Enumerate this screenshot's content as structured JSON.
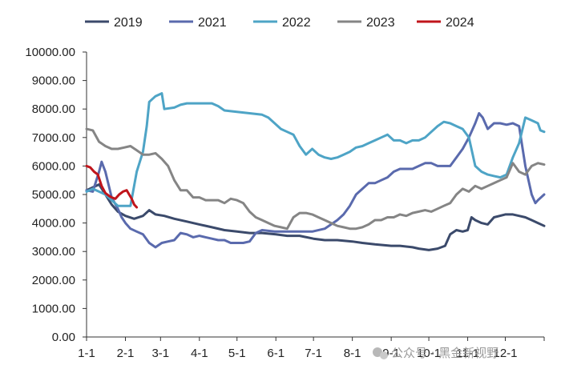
{
  "chart_data": {
    "type": "line",
    "title": "",
    "xlabel": "",
    "ylabel": "",
    "ylim": [
      0,
      10000
    ],
    "y_ticks": [
      "0.00",
      "1000.00",
      "2000.00",
      "3000.00",
      "4000.00",
      "5000.00",
      "6000.00",
      "7000.00",
      "8000.00",
      "9000.00",
      "10000.00"
    ],
    "x_ticks": [
      "1-1",
      "2-1",
      "3-1",
      "4-1",
      "5-1",
      "6-1",
      "7-1",
      "8-1",
      "9-1",
      "10-1",
      "11-1",
      "12-1"
    ],
    "x_tick_days": [
      0,
      31,
      59,
      90,
      120,
      151,
      181,
      212,
      243,
      273,
      304,
      334
    ],
    "x_range_days": [
      0,
      365
    ],
    "grid": false,
    "legend_position": "top",
    "watermark": "公众号 · 黑金新视野",
    "series": [
      {
        "name": "2019",
        "color": "#3b4a6b",
        "points": [
          [
            0,
            5150
          ],
          [
            10,
            5350
          ],
          [
            15,
            5000
          ],
          [
            20,
            4650
          ],
          [
            25,
            4400
          ],
          [
            31,
            4250
          ],
          [
            38,
            4150
          ],
          [
            45,
            4250
          ],
          [
            50,
            4450
          ],
          [
            55,
            4300
          ],
          [
            62,
            4250
          ],
          [
            70,
            4150
          ],
          [
            80,
            4050
          ],
          [
            90,
            3950
          ],
          [
            100,
            3850
          ],
          [
            110,
            3750
          ],
          [
            120,
            3700
          ],
          [
            130,
            3650
          ],
          [
            140,
            3650
          ],
          [
            151,
            3600
          ],
          [
            160,
            3550
          ],
          [
            170,
            3550
          ],
          [
            181,
            3450
          ],
          [
            190,
            3400
          ],
          [
            200,
            3400
          ],
          [
            212,
            3350
          ],
          [
            220,
            3300
          ],
          [
            230,
            3250
          ],
          [
            243,
            3200
          ],
          [
            250,
            3200
          ],
          [
            260,
            3150
          ],
          [
            265,
            3100
          ],
          [
            273,
            3050
          ],
          [
            280,
            3100
          ],
          [
            286,
            3200
          ],
          [
            290,
            3600
          ],
          [
            295,
            3750
          ],
          [
            300,
            3700
          ],
          [
            304,
            3750
          ],
          [
            307,
            4200
          ],
          [
            310,
            4100
          ],
          [
            315,
            4000
          ],
          [
            320,
            3950
          ],
          [
            325,
            4200
          ],
          [
            334,
            4300
          ],
          [
            340,
            4300
          ],
          [
            345,
            4250
          ],
          [
            350,
            4200
          ],
          [
            355,
            4100
          ],
          [
            360,
            4000
          ],
          [
            365,
            3900
          ]
        ]
      },
      {
        "name": "2021",
        "color": "#5a6aad",
        "points": [
          [
            0,
            5150
          ],
          [
            5,
            5100
          ],
          [
            10,
            5800
          ],
          [
            12,
            6150
          ],
          [
            15,
            5800
          ],
          [
            20,
            4900
          ],
          [
            25,
            4500
          ],
          [
            28,
            4200
          ],
          [
            31,
            4000
          ],
          [
            35,
            3800
          ],
          [
            40,
            3700
          ],
          [
            45,
            3600
          ],
          [
            50,
            3300
          ],
          [
            55,
            3150
          ],
          [
            60,
            3300
          ],
          [
            65,
            3350
          ],
          [
            70,
            3400
          ],
          [
            75,
            3650
          ],
          [
            80,
            3600
          ],
          [
            85,
            3500
          ],
          [
            90,
            3550
          ],
          [
            95,
            3500
          ],
          [
            100,
            3450
          ],
          [
            105,
            3400
          ],
          [
            110,
            3400
          ],
          [
            115,
            3300
          ],
          [
            120,
            3300
          ],
          [
            125,
            3300
          ],
          [
            130,
            3350
          ],
          [
            135,
            3650
          ],
          [
            140,
            3750
          ],
          [
            150,
            3700
          ],
          [
            160,
            3700
          ],
          [
            170,
            3700
          ],
          [
            180,
            3700
          ],
          [
            190,
            3800
          ],
          [
            200,
            4100
          ],
          [
            205,
            4300
          ],
          [
            210,
            4600
          ],
          [
            215,
            5000
          ],
          [
            220,
            5200
          ],
          [
            225,
            5400
          ],
          [
            230,
            5400
          ],
          [
            235,
            5500
          ],
          [
            240,
            5600
          ],
          [
            245,
            5800
          ],
          [
            250,
            5900
          ],
          [
            255,
            5900
          ],
          [
            260,
            5900
          ],
          [
            265,
            6000
          ],
          [
            270,
            6100
          ],
          [
            275,
            6100
          ],
          [
            280,
            6000
          ],
          [
            290,
            6000
          ],
          [
            295,
            6300
          ],
          [
            300,
            6600
          ],
          [
            305,
            7000
          ],
          [
            310,
            7500
          ],
          [
            313,
            7850
          ],
          [
            316,
            7700
          ],
          [
            320,
            7300
          ],
          [
            325,
            7500
          ],
          [
            330,
            7500
          ],
          [
            335,
            7450
          ],
          [
            340,
            7500
          ],
          [
            345,
            7400
          ],
          [
            350,
            6000
          ],
          [
            355,
            5000
          ],
          [
            358,
            4700
          ],
          [
            360,
            4800
          ],
          [
            365,
            5000
          ]
        ]
      },
      {
        "name": "2022",
        "color": "#4ea4c6",
        "points": [
          [
            0,
            5100
          ],
          [
            5,
            5200
          ],
          [
            10,
            5100
          ],
          [
            15,
            5000
          ],
          [
            20,
            4800
          ],
          [
            25,
            4600
          ],
          [
            30,
            4600
          ],
          [
            35,
            4600
          ],
          [
            40,
            5800
          ],
          [
            45,
            6500
          ],
          [
            48,
            7400
          ],
          [
            50,
            8250
          ],
          [
            55,
            8450
          ],
          [
            60,
            8550
          ],
          [
            62,
            8000
          ],
          [
            70,
            8050
          ],
          [
            75,
            8150
          ],
          [
            80,
            8200
          ],
          [
            90,
            8200
          ],
          [
            100,
            8200
          ],
          [
            105,
            8100
          ],
          [
            110,
            7950
          ],
          [
            120,
            7900
          ],
          [
            130,
            7850
          ],
          [
            140,
            7800
          ],
          [
            145,
            7700
          ],
          [
            150,
            7500
          ],
          [
            155,
            7300
          ],
          [
            160,
            7200
          ],
          [
            165,
            7100
          ],
          [
            170,
            6700
          ],
          [
            175,
            6400
          ],
          [
            180,
            6600
          ],
          [
            185,
            6400
          ],
          [
            190,
            6300
          ],
          [
            195,
            6250
          ],
          [
            200,
            6300
          ],
          [
            205,
            6400
          ],
          [
            210,
            6500
          ],
          [
            215,
            6650
          ],
          [
            220,
            6700
          ],
          [
            225,
            6800
          ],
          [
            230,
            6900
          ],
          [
            235,
            7000
          ],
          [
            240,
            7100
          ],
          [
            245,
            6900
          ],
          [
            250,
            6900
          ],
          [
            255,
            6800
          ],
          [
            260,
            6900
          ],
          [
            265,
            6900
          ],
          [
            270,
            7000
          ],
          [
            275,
            7200
          ],
          [
            280,
            7400
          ],
          [
            285,
            7550
          ],
          [
            290,
            7500
          ],
          [
            295,
            7400
          ],
          [
            300,
            7300
          ],
          [
            305,
            7000
          ],
          [
            310,
            6000
          ],
          [
            315,
            5800
          ],
          [
            320,
            5700
          ],
          [
            325,
            5650
          ],
          [
            330,
            5600
          ],
          [
            335,
            5700
          ],
          [
            340,
            6300
          ],
          [
            345,
            6800
          ],
          [
            350,
            7700
          ],
          [
            355,
            7600
          ],
          [
            360,
            7500
          ],
          [
            362,
            7250
          ],
          [
            365,
            7200
          ]
        ]
      },
      {
        "name": "2023",
        "color": "#858585",
        "points": [
          [
            0,
            7300
          ],
          [
            5,
            7250
          ],
          [
            10,
            6850
          ],
          [
            15,
            6700
          ],
          [
            20,
            6600
          ],
          [
            25,
            6600
          ],
          [
            30,
            6650
          ],
          [
            35,
            6700
          ],
          [
            40,
            6550
          ],
          [
            45,
            6400
          ],
          [
            50,
            6400
          ],
          [
            55,
            6450
          ],
          [
            60,
            6250
          ],
          [
            65,
            6000
          ],
          [
            70,
            5500
          ],
          [
            75,
            5150
          ],
          [
            80,
            5150
          ],
          [
            85,
            4900
          ],
          [
            90,
            4900
          ],
          [
            95,
            4800
          ],
          [
            100,
            4800
          ],
          [
            105,
            4800
          ],
          [
            110,
            4700
          ],
          [
            115,
            4850
          ],
          [
            120,
            4800
          ],
          [
            125,
            4700
          ],
          [
            130,
            4400
          ],
          [
            135,
            4200
          ],
          [
            140,
            4100
          ],
          [
            145,
            4000
          ],
          [
            150,
            3900
          ],
          [
            155,
            3850
          ],
          [
            160,
            3800
          ],
          [
            165,
            4200
          ],
          [
            170,
            4350
          ],
          [
            175,
            4350
          ],
          [
            180,
            4300
          ],
          [
            185,
            4200
          ],
          [
            190,
            4100
          ],
          [
            195,
            4000
          ],
          [
            200,
            3900
          ],
          [
            205,
            3850
          ],
          [
            210,
            3800
          ],
          [
            215,
            3800
          ],
          [
            220,
            3850
          ],
          [
            225,
            3950
          ],
          [
            230,
            4100
          ],
          [
            235,
            4100
          ],
          [
            240,
            4200
          ],
          [
            245,
            4200
          ],
          [
            250,
            4300
          ],
          [
            255,
            4250
          ],
          [
            260,
            4350
          ],
          [
            265,
            4400
          ],
          [
            270,
            4450
          ],
          [
            275,
            4400
          ],
          [
            280,
            4500
          ],
          [
            285,
            4600
          ],
          [
            290,
            4700
          ],
          [
            295,
            5000
          ],
          [
            300,
            5200
          ],
          [
            305,
            5100
          ],
          [
            310,
            5300
          ],
          [
            315,
            5200
          ],
          [
            320,
            5300
          ],
          [
            325,
            5400
          ],
          [
            330,
            5500
          ],
          [
            335,
            5600
          ],
          [
            340,
            6100
          ],
          [
            345,
            5800
          ],
          [
            350,
            5700
          ],
          [
            355,
            6000
          ],
          [
            360,
            6100
          ],
          [
            365,
            6050
          ]
        ]
      },
      {
        "name": "2024",
        "color": "#c0141b",
        "points": [
          [
            0,
            6000
          ],
          [
            3,
            5950
          ],
          [
            6,
            5800
          ],
          [
            9,
            5700
          ],
          [
            12,
            5300
          ],
          [
            15,
            5050
          ],
          [
            18,
            4950
          ],
          [
            20,
            4900
          ],
          [
            23,
            4850
          ],
          [
            26,
            5000
          ],
          [
            29,
            5100
          ],
          [
            32,
            5150
          ],
          [
            34,
            5000
          ],
          [
            36,
            4850
          ],
          [
            38,
            4650
          ],
          [
            40,
            4550
          ]
        ]
      }
    ]
  }
}
